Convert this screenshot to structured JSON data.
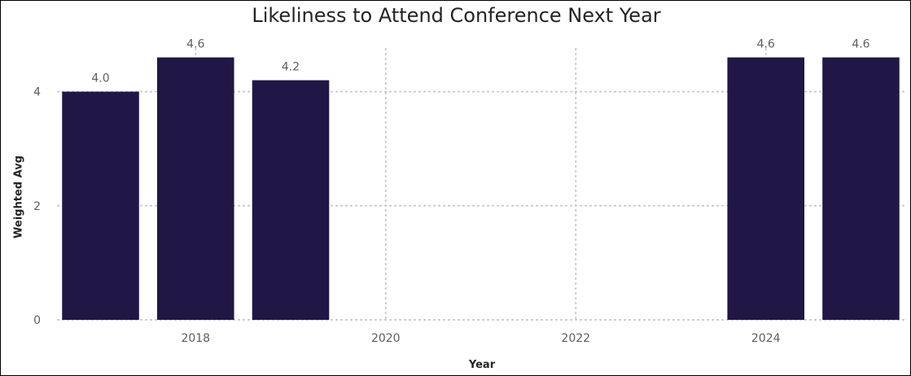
{
  "chart_data": {
    "type": "bar",
    "title": "Likeliness to Attend Conference Next Year",
    "xlabel": "Year",
    "ylabel": "Weighted Avg",
    "x": [
      2017,
      2018,
      2019,
      2024,
      2025
    ],
    "values": [
      4.0,
      4.6,
      4.2,
      4.6,
      4.6
    ],
    "data_labels": [
      "4.0",
      "4.6",
      "4.2",
      "4.6",
      "4.6"
    ],
    "xlim": [
      2016.55,
      2025.45
    ],
    "ylim": [
      0,
      4.95
    ],
    "x_ticks": [
      2018,
      2020,
      2022,
      2024
    ],
    "x_tick_labels": [
      "2018",
      "2020",
      "2022",
      "2024"
    ],
    "y_ticks": [
      0,
      2,
      4
    ],
    "y_tick_labels": [
      "0",
      "2",
      "4"
    ],
    "grid": true,
    "colors": {
      "bar": "#201747",
      "grid": "#c8c6c4",
      "text": "#605e5c"
    }
  }
}
